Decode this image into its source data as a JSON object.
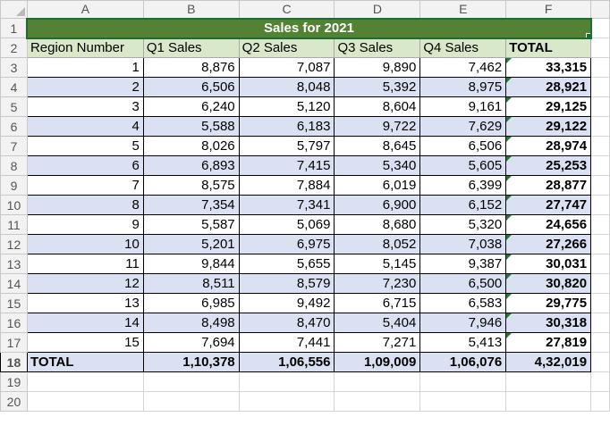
{
  "column_headers": [
    "A",
    "B",
    "C",
    "D",
    "E",
    "F"
  ],
  "row_numbers": [
    "1",
    "2",
    "3",
    "4",
    "5",
    "6",
    "7",
    "8",
    "9",
    "10",
    "11",
    "12",
    "13",
    "14",
    "15",
    "16",
    "17",
    "18",
    "19",
    "20"
  ],
  "title": "Sales for 2021",
  "headers": [
    "Region Number",
    "Q1 Sales",
    "Q2 Sales",
    "Q3 Sales",
    "Q4 Sales",
    "TOTAL"
  ],
  "rows": [
    [
      "1",
      "8,876",
      "7,087",
      "9,890",
      "7,462",
      "33,315"
    ],
    [
      "2",
      "6,506",
      "8,048",
      "5,392",
      "8,975",
      "28,921"
    ],
    [
      "3",
      "6,240",
      "5,120",
      "8,604",
      "9,161",
      "29,125"
    ],
    [
      "4",
      "5,588",
      "6,183",
      "9,722",
      "7,629",
      "29,122"
    ],
    [
      "5",
      "8,026",
      "5,797",
      "8,645",
      "6,506",
      "28,974"
    ],
    [
      "6",
      "6,893",
      "7,415",
      "5,340",
      "5,605",
      "25,253"
    ],
    [
      "7",
      "8,575",
      "7,884",
      "6,019",
      "6,399",
      "28,877"
    ],
    [
      "8",
      "7,354",
      "7,341",
      "6,900",
      "6,152",
      "27,747"
    ],
    [
      "9",
      "5,587",
      "5,069",
      "8,680",
      "5,320",
      "24,656"
    ],
    [
      "10",
      "5,201",
      "6,975",
      "8,052",
      "7,038",
      "27,266"
    ],
    [
      "11",
      "9,844",
      "5,655",
      "5,145",
      "9,387",
      "30,031"
    ],
    [
      "12",
      "8,511",
      "8,579",
      "7,230",
      "6,500",
      "30,820"
    ],
    [
      "13",
      "6,985",
      "9,492",
      "6,715",
      "6,583",
      "29,775"
    ],
    [
      "14",
      "8,498",
      "8,470",
      "5,404",
      "7,946",
      "30,318"
    ],
    [
      "15",
      "7,694",
      "7,441",
      "7,271",
      "5,413",
      "27,819"
    ]
  ],
  "totals": [
    "TOTAL",
    "1,10,378",
    "1,06,556",
    "1,09,009",
    "1,06,076",
    "4,32,019"
  ],
  "colors": {
    "title_bg": "#548235",
    "header_bg": "#d9e8c8",
    "band_bg": "#d9e1f2",
    "selection_border": "#1e6b34"
  }
}
